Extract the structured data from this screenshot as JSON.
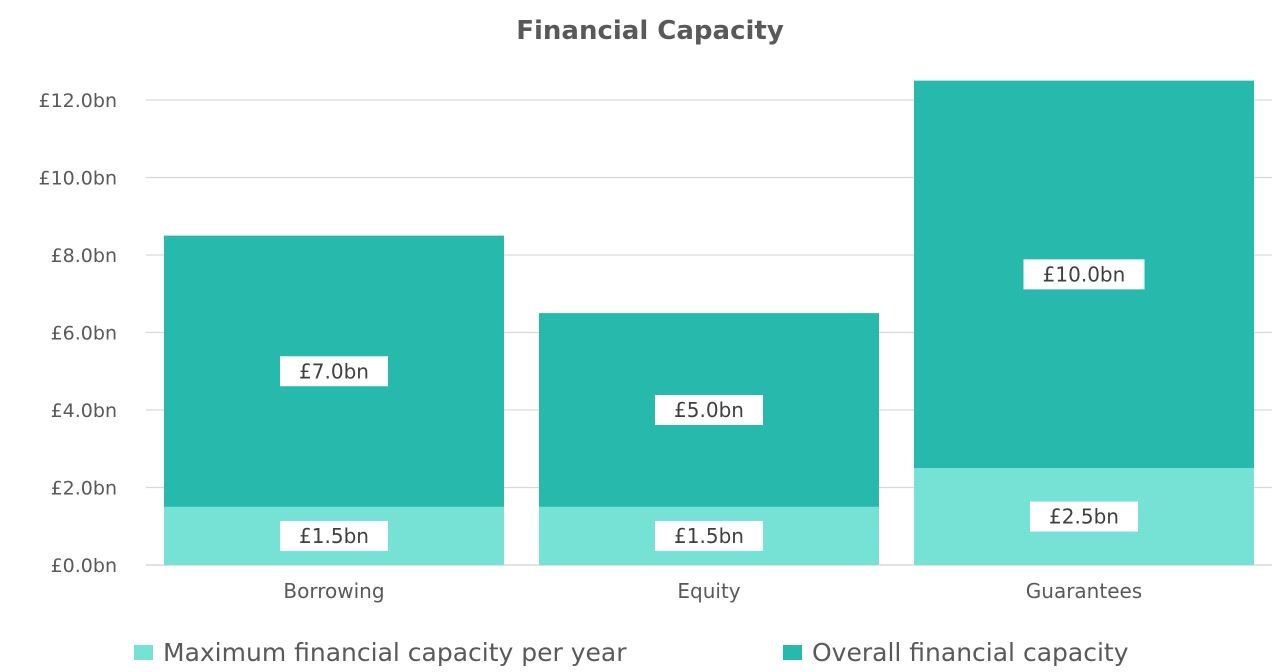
{
  "chart_data": {
    "type": "bar",
    "stacked": true,
    "title": "Financial Capacity",
    "categories": [
      "Borrowing",
      "Equity",
      "Guarantees"
    ],
    "series": [
      {
        "name": "Maximum financial capacity per year",
        "color": "#76E2D6",
        "values": [
          1.5,
          1.5,
          2.5
        ],
        "labels": [
          "£1.5bn",
          "£1.5bn",
          "£2.5bn"
        ]
      },
      {
        "name": "Overall financial capacity",
        "color": "#27B9AB",
        "values": [
          7.0,
          5.0,
          10.0
        ],
        "labels": [
          "£7.0bn",
          "£5.0bn",
          "£10.0bn"
        ]
      }
    ],
    "ylim": [
      0,
      12
    ],
    "yticks": [
      0,
      2,
      4,
      6,
      8,
      10,
      12
    ],
    "ytick_labels": [
      "£0.0bn",
      "£2.0bn",
      "£4.0bn",
      "£6.0bn",
      "£8.0bn",
      "£10.0bn",
      "£12.0bn"
    ],
    "xlabel": "",
    "ylabel": "",
    "grid": true,
    "legend": "bottom",
    "gridline_color": "#D9D9D9"
  }
}
